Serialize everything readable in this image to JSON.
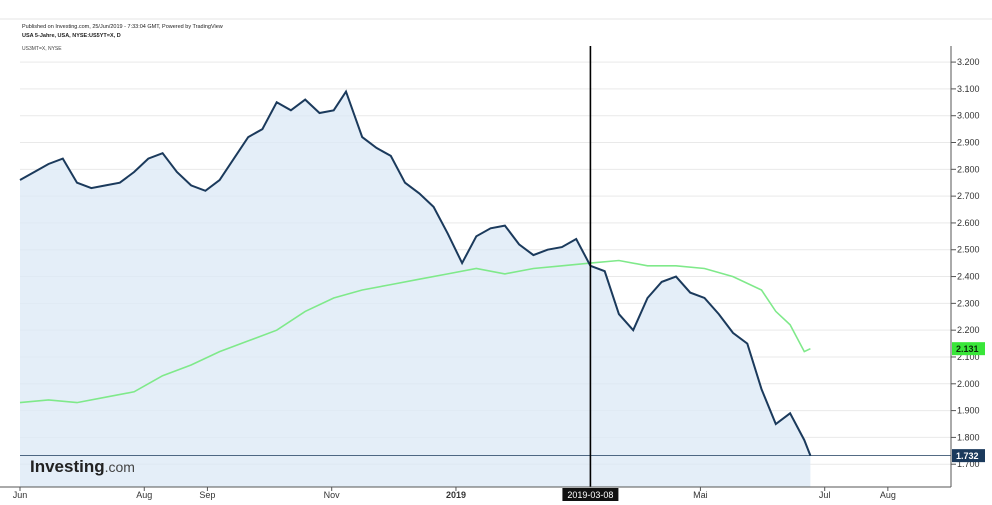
{
  "header": {
    "published": "Published on Investing.com, 25/Jun/2019 - 7:33:04 GMT, Powered by TradingView",
    "instrument": "USA 5-Jahre, USA, NYSE:US5YT=X, D",
    "compare": "US3MT=X, NYSE"
  },
  "logo": {
    "brand": "Investing",
    "suffix": ".com"
  },
  "colors": {
    "main": "#1b3a5c",
    "main_fill": "#dbe8f6",
    "compare": "#7fe98a",
    "compare_tag": "#39e639",
    "crosshair": "#000000",
    "grid": "#e9e9e9"
  },
  "crosshair": {
    "label": "2019-03-08"
  },
  "chart_data": {
    "type": "line",
    "xlabel": "",
    "ylabel": "",
    "ylim": [
      1.615,
      3.26
    ],
    "y_ticks": [
      "3.200",
      "3.100",
      "3.000",
      "2.900",
      "2.800",
      "2.700",
      "2.600",
      "2.500",
      "2.400",
      "2.300",
      "2.200",
      "2.100",
      "2.000",
      "1.900",
      "1.800",
      "1.700"
    ],
    "x_ticks": [
      "Jun",
      "Aug",
      "Sep",
      "Nov",
      "2019",
      "Mai",
      "Jul",
      "Aug"
    ],
    "x_tick_dates": [
      "2018-06-01",
      "2018-08-01",
      "2018-09-01",
      "2018-11-01",
      "2019-01-01",
      "2019-05-01",
      "2019-07-01",
      "2019-08-01"
    ],
    "x_range": [
      "2018-06-01",
      "2019-09-01"
    ],
    "last_values": {
      "main": "1.732",
      "compare": "2.131"
    },
    "series": [
      {
        "key": "main",
        "style": "area",
        "points": [
          [
            "2018-06-01",
            2.76
          ],
          [
            "2018-06-08",
            2.79
          ],
          [
            "2018-06-15",
            2.82
          ],
          [
            "2018-06-22",
            2.84
          ],
          [
            "2018-06-29",
            2.75
          ],
          [
            "2018-07-06",
            2.73
          ],
          [
            "2018-07-13",
            2.74
          ],
          [
            "2018-07-20",
            2.75
          ],
          [
            "2018-07-27",
            2.79
          ],
          [
            "2018-08-03",
            2.84
          ],
          [
            "2018-08-10",
            2.86
          ],
          [
            "2018-08-17",
            2.79
          ],
          [
            "2018-08-24",
            2.74
          ],
          [
            "2018-08-31",
            2.72
          ],
          [
            "2018-09-07",
            2.76
          ],
          [
            "2018-09-14",
            2.84
          ],
          [
            "2018-09-21",
            2.92
          ],
          [
            "2018-09-28",
            2.95
          ],
          [
            "2018-10-05",
            3.05
          ],
          [
            "2018-10-12",
            3.02
          ],
          [
            "2018-10-19",
            3.06
          ],
          [
            "2018-10-26",
            3.01
          ],
          [
            "2018-11-02",
            3.02
          ],
          [
            "2018-11-08",
            3.09
          ],
          [
            "2018-11-16",
            2.92
          ],
          [
            "2018-11-23",
            2.88
          ],
          [
            "2018-11-30",
            2.85
          ],
          [
            "2018-12-07",
            2.75
          ],
          [
            "2018-12-14",
            2.71
          ],
          [
            "2018-12-21",
            2.66
          ],
          [
            "2018-12-28",
            2.56
          ],
          [
            "2019-01-04",
            2.45
          ],
          [
            "2019-01-11",
            2.55
          ],
          [
            "2019-01-18",
            2.58
          ],
          [
            "2019-01-25",
            2.59
          ],
          [
            "2019-02-01",
            2.52
          ],
          [
            "2019-02-08",
            2.48
          ],
          [
            "2019-02-15",
            2.5
          ],
          [
            "2019-02-22",
            2.51
          ],
          [
            "2019-03-01",
            2.54
          ],
          [
            "2019-03-08",
            2.44
          ],
          [
            "2019-03-15",
            2.42
          ],
          [
            "2019-03-22",
            2.26
          ],
          [
            "2019-03-29",
            2.2
          ],
          [
            "2019-04-05",
            2.32
          ],
          [
            "2019-04-12",
            2.38
          ],
          [
            "2019-04-19",
            2.4
          ],
          [
            "2019-04-26",
            2.34
          ],
          [
            "2019-05-03",
            2.32
          ],
          [
            "2019-05-10",
            2.26
          ],
          [
            "2019-05-17",
            2.19
          ],
          [
            "2019-05-24",
            2.15
          ],
          [
            "2019-05-31",
            1.98
          ],
          [
            "2019-06-07",
            1.85
          ],
          [
            "2019-06-14",
            1.89
          ],
          [
            "2019-06-21",
            1.79
          ],
          [
            "2019-06-24",
            1.732
          ]
        ]
      },
      {
        "key": "compare",
        "style": "line",
        "points": [
          [
            "2018-06-01",
            1.93
          ],
          [
            "2018-06-15",
            1.94
          ],
          [
            "2018-06-29",
            1.93
          ],
          [
            "2018-07-13",
            1.95
          ],
          [
            "2018-07-27",
            1.97
          ],
          [
            "2018-08-10",
            2.03
          ],
          [
            "2018-08-24",
            2.07
          ],
          [
            "2018-09-07",
            2.12
          ],
          [
            "2018-09-21",
            2.16
          ],
          [
            "2018-10-05",
            2.2
          ],
          [
            "2018-10-19",
            2.27
          ],
          [
            "2018-11-02",
            2.32
          ],
          [
            "2018-11-16",
            2.35
          ],
          [
            "2018-11-30",
            2.37
          ],
          [
            "2018-12-14",
            2.39
          ],
          [
            "2018-12-28",
            2.41
          ],
          [
            "2019-01-11",
            2.43
          ],
          [
            "2019-01-25",
            2.41
          ],
          [
            "2019-02-08",
            2.43
          ],
          [
            "2019-02-22",
            2.44
          ],
          [
            "2019-03-08",
            2.45
          ],
          [
            "2019-03-22",
            2.46
          ],
          [
            "2019-04-05",
            2.44
          ],
          [
            "2019-04-19",
            2.44
          ],
          [
            "2019-05-03",
            2.43
          ],
          [
            "2019-05-17",
            2.4
          ],
          [
            "2019-05-31",
            2.35
          ],
          [
            "2019-06-07",
            2.27
          ],
          [
            "2019-06-14",
            2.22
          ],
          [
            "2019-06-21",
            2.12
          ],
          [
            "2019-06-24",
            2.131
          ]
        ]
      }
    ]
  }
}
